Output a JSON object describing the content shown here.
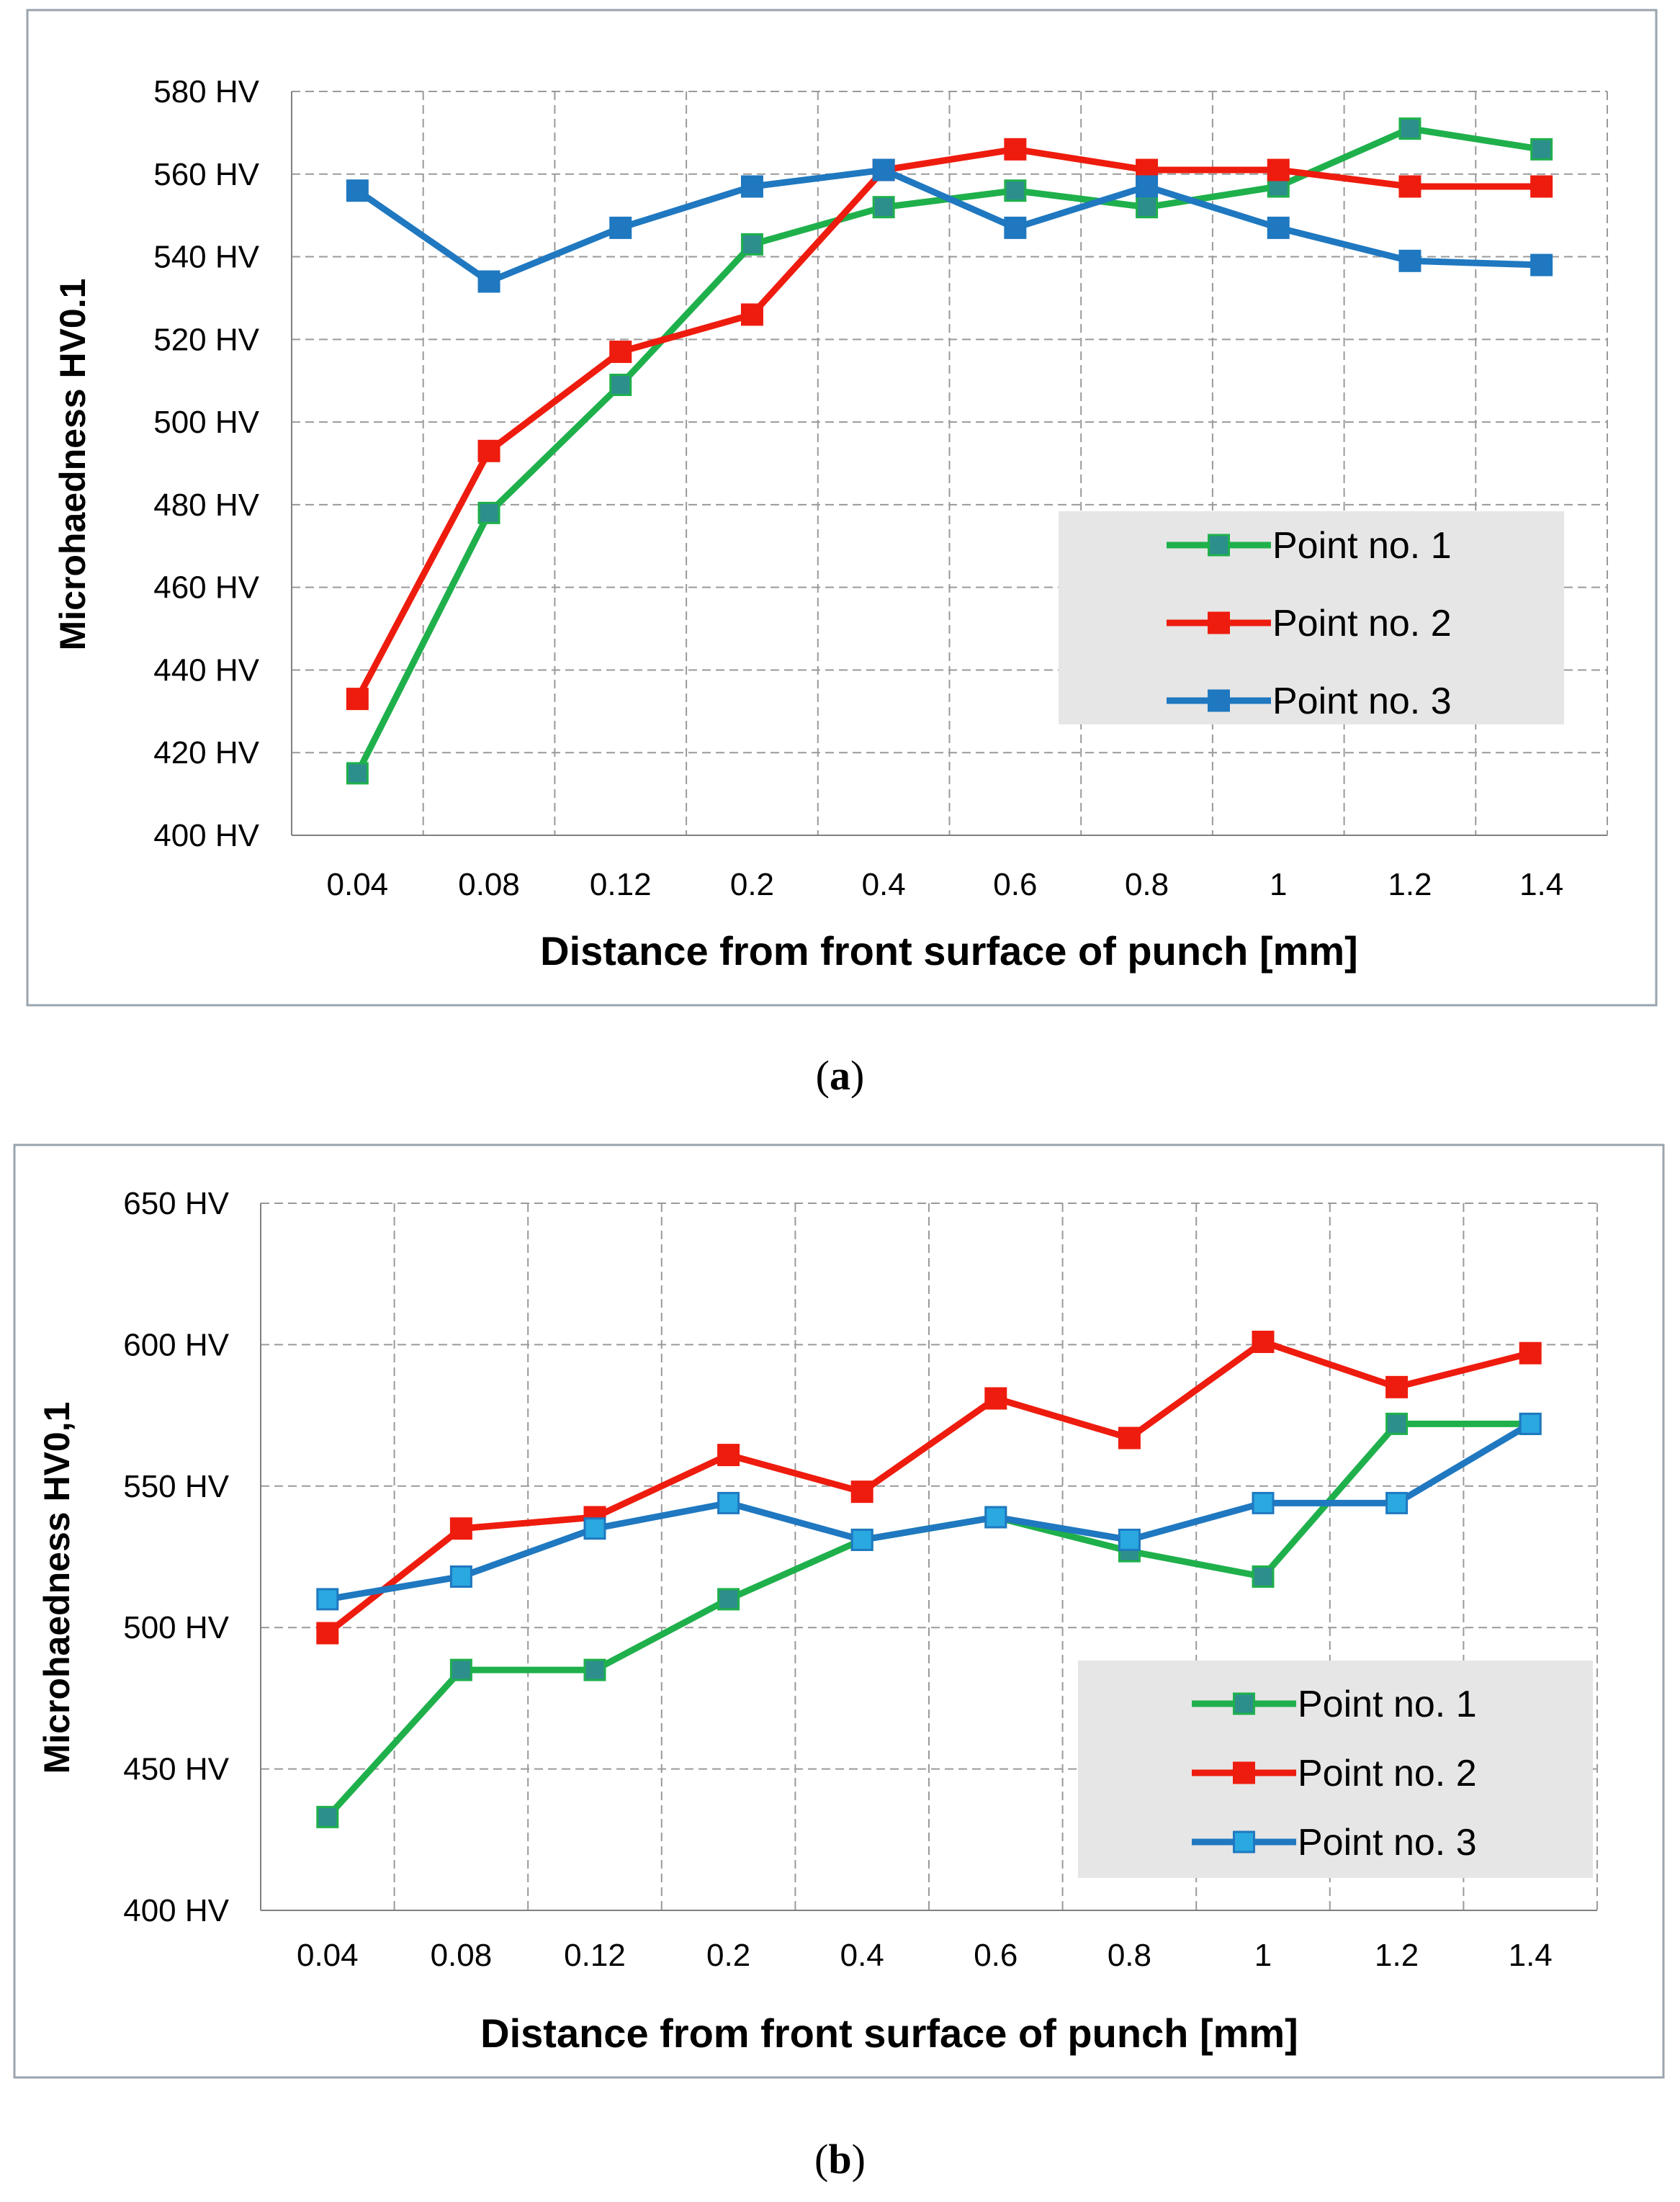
{
  "chart_data": [
    {
      "id": "a",
      "type": "line",
      "panel_label": "a",
      "title": "",
      "xlabel": "Distance from front surface of punch [mm]",
      "ylabel": "Microhaedness  HV0.1",
      "categories": [
        "0.04",
        "0.08",
        "0.12",
        "0.2",
        "0.4",
        "0.6",
        "0.8",
        "1",
        "1.2",
        "1.4"
      ],
      "ylim": [
        400,
        580
      ],
      "yticks": [
        400,
        420,
        440,
        460,
        480,
        500,
        520,
        540,
        560,
        580
      ],
      "ytick_labels": [
        "400 HV",
        "420 HV",
        "440 HV",
        "460 HV",
        "480 HV",
        "500 HV",
        "520 HV",
        "540 HV",
        "560 HV",
        "580 HV"
      ],
      "grid": true,
      "legend_position": "lower-right",
      "series": [
        {
          "name": "Point no. 1",
          "line_color": "#1fb04c",
          "marker_color": "#2d8f8c",
          "values": [
            415,
            478,
            509,
            543,
            552,
            556,
            552,
            557,
            571,
            566
          ]
        },
        {
          "name": "Point no. 2",
          "line_color": "#ee1c0e",
          "marker_color": "#ee1c0e",
          "values": [
            433,
            493,
            517,
            526,
            561,
            566,
            561,
            561,
            557,
            557
          ]
        },
        {
          "name": "Point no. 3",
          "line_color": "#1f78c0",
          "marker_color": "#1f78c0",
          "values": [
            556,
            534,
            547,
            557,
            561,
            547,
            557,
            547,
            539,
            538
          ]
        }
      ]
    },
    {
      "id": "b",
      "type": "line",
      "panel_label": "b",
      "title": "",
      "xlabel": "Distance from front surface of punch [mm]",
      "ylabel": "Microhaedness HV0,1",
      "categories": [
        "0.04",
        "0.08",
        "0.12",
        "0.2",
        "0.4",
        "0.6",
        "0.8",
        "1",
        "1.2",
        "1.4"
      ],
      "ylim": [
        400,
        650
      ],
      "yticks": [
        400,
        450,
        500,
        550,
        600,
        650
      ],
      "ytick_labels": [
        "400 HV",
        "450 HV",
        "500 HV",
        "550 HV",
        "600 HV",
        "650 HV"
      ],
      "grid": true,
      "legend_position": "lower-right",
      "series": [
        {
          "name": "Point no. 1",
          "line_color": "#1fb04c",
          "marker_color": "#2d8f8c",
          "values": [
            433,
            485,
            485,
            510,
            531,
            539,
            527,
            518,
            572,
            572
          ]
        },
        {
          "name": "Point no. 2",
          "line_color": "#ee1c0e",
          "marker_color": "#ee1c0e",
          "values": [
            498,
            535,
            539,
            561,
            548,
            581,
            567,
            601,
            585,
            597
          ]
        },
        {
          "name": "Point no. 3",
          "line_color": "#1f78c0",
          "marker_color": "#2aa8e0",
          "values": [
            510,
            518,
            535,
            544,
            531,
            539,
            531,
            544,
            544,
            572
          ]
        }
      ]
    }
  ]
}
